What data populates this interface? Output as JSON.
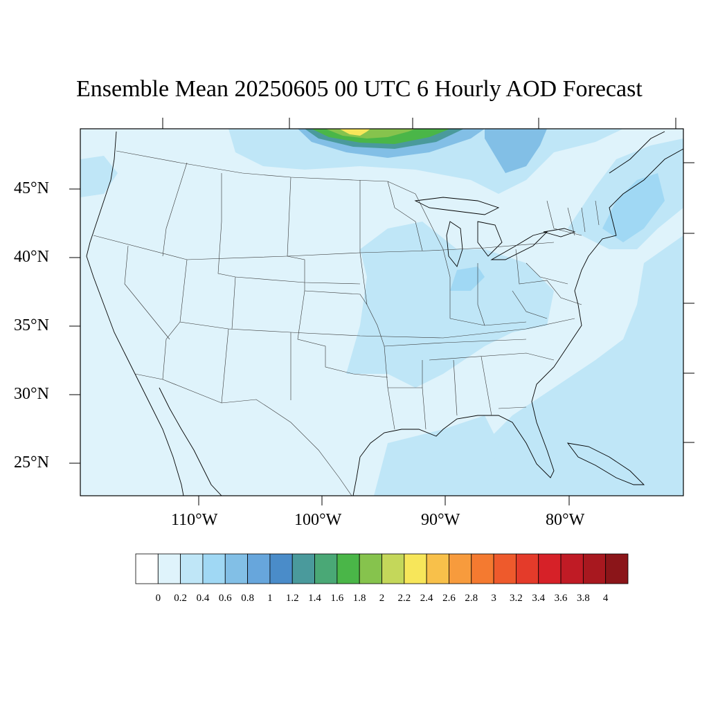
{
  "title": "Ensemble Mean 20250605 00 UTC 6 Hourly AOD Forecast",
  "map": {
    "projection": "lambert-conformal",
    "lat_labels": [
      "45°N",
      "40°N",
      "35°N",
      "30°N",
      "25°N"
    ],
    "lon_labels": [
      "110°W",
      "100°W",
      "90°W",
      "80°W"
    ],
    "background_fill": "#dff3fb"
  },
  "colorbar": {
    "labels": [
      "0",
      "0.2",
      "0.4",
      "0.6",
      "0.8",
      "1",
      "1.2",
      "1.4",
      "1.6",
      "1.8",
      "2",
      "2.2",
      "2.4",
      "2.6",
      "2.8",
      "3",
      "3.2",
      "3.4",
      "3.6",
      "3.8",
      "4"
    ],
    "colors": [
      "#ffffff",
      "#dff3fb",
      "#bfe6f7",
      "#a0d8f4",
      "#82bfe6",
      "#67a6dc",
      "#4a8cc9",
      "#4a9a9c",
      "#4aa876",
      "#4ab648",
      "#86c34d",
      "#c4d75a",
      "#f7e65a",
      "#f8c04a",
      "#f79b3d",
      "#f47a30",
      "#ee5a2c",
      "#e43b2a",
      "#d62128",
      "#c01b25",
      "#a8181f",
      "#8b1519"
    ]
  }
}
